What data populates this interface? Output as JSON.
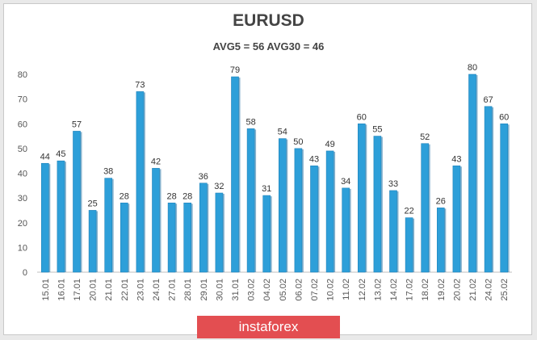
{
  "chart_data": {
    "type": "bar",
    "title": "EURUSD",
    "subtitle": "AVG5 = 56 AVG30 = 46",
    "categories": [
      "15.01",
      "16.01",
      "17.01",
      "20.01",
      "21.01",
      "22.01",
      "23.01",
      "24.01",
      "27.01",
      "28.01",
      "29.01",
      "30.01",
      "31.01",
      "03.02",
      "04.02",
      "05.02",
      "06.02",
      "07.02",
      "10.02",
      "11.02",
      "12.02",
      "13.02",
      "14.02",
      "17.02",
      "18.02",
      "19.02",
      "20.02",
      "21.02",
      "24.02",
      "25.02"
    ],
    "values": [
      44,
      45,
      57,
      25,
      38,
      28,
      73,
      42,
      28,
      28,
      36,
      32,
      79,
      58,
      31,
      54,
      50,
      43,
      49,
      34,
      60,
      55,
      33,
      22,
      52,
      26,
      43,
      80,
      67,
      60
    ],
    "ylim": [
      0,
      80
    ],
    "yticks": [
      0,
      10,
      20,
      30,
      40,
      50,
      60,
      70,
      80
    ],
    "grid": false,
    "bar_color": "#2d9fd9",
    "bar_shadow_color": "#2474a8"
  },
  "brand": {
    "label": "instaforex",
    "color": "#e34e51"
  }
}
